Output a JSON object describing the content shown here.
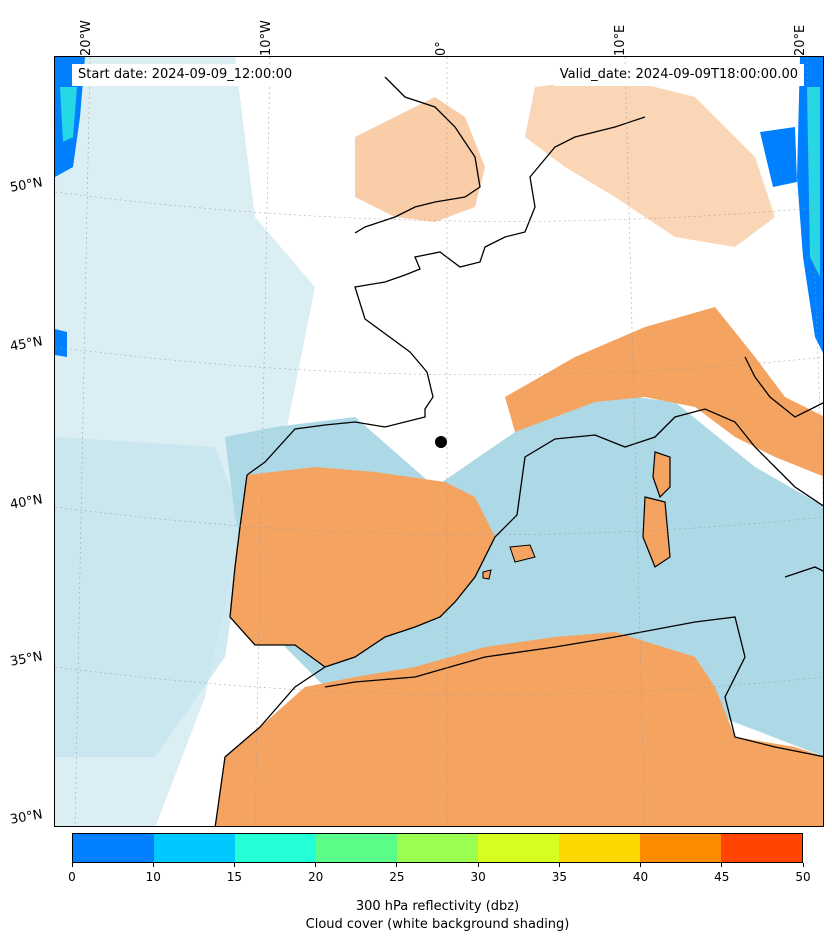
{
  "map": {
    "start_date": "Start date: 2024-09-09_12:00:00",
    "valid_date": "Valid_date: 2024-09-09T18:00:00.00",
    "lon_labels": [
      "20°W",
      "10°W",
      "0°",
      "10°E",
      "20°E"
    ],
    "lat_labels": [
      "50°N",
      "45°N",
      "40°N",
      "35°N",
      "30°N"
    ],
    "colors": {
      "land_cloud": "#f4a460",
      "sea_cloud": "#add8e6",
      "light_cloud": "#d6ecf3",
      "coastline": "#000000"
    }
  },
  "colorbar": {
    "ticks": [
      "0",
      "10",
      "15",
      "20",
      "25",
      "30",
      "35",
      "40",
      "45",
      "50"
    ],
    "colors": [
      "#0080ff",
      "#00c8ff",
      "#24ffd5",
      "#5aff8a",
      "#9bff4f",
      "#d4ff1f",
      "#ffd700",
      "#ff8c00",
      "#ff4500"
    ],
    "label_line1": "300 hPa reflectivity (dbz)",
    "label_line2": "Cloud cover (white background shading)"
  }
}
